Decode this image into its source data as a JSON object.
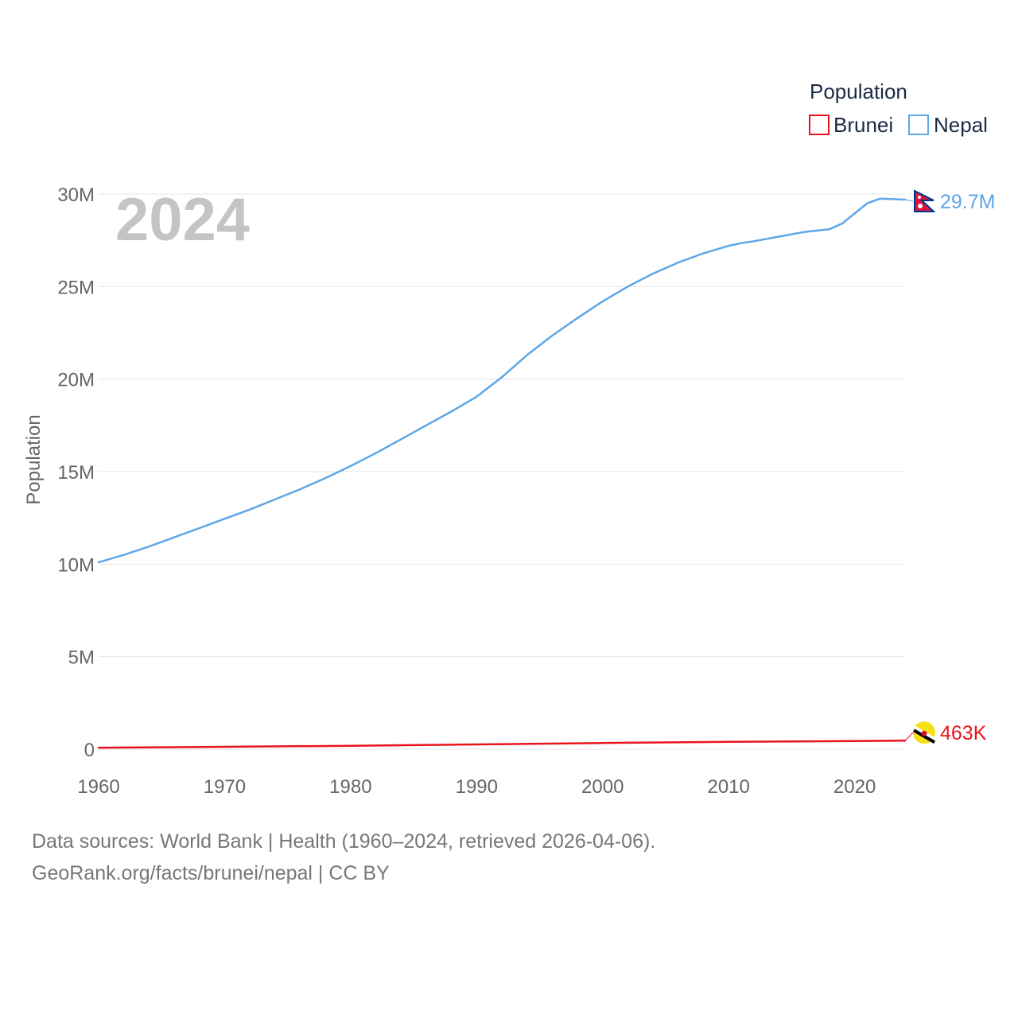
{
  "chart_data": {
    "type": "line",
    "year_label": "2024",
    "ylabel": "Population",
    "ylim": [
      0,
      30000000
    ],
    "xlim": [
      1960,
      2024
    ],
    "y_ticks": [
      {
        "value": 0,
        "label": "0"
      },
      {
        "value": 5000000,
        "label": "5M"
      },
      {
        "value": 10000000,
        "label": "10M"
      },
      {
        "value": 15000000,
        "label": "15M"
      },
      {
        "value": 20000000,
        "label": "20M"
      },
      {
        "value": 25000000,
        "label": "25M"
      },
      {
        "value": 30000000,
        "label": "30M"
      }
    ],
    "x_ticks": [
      {
        "value": 1960,
        "label": "1960"
      },
      {
        "value": 1970,
        "label": "1970"
      },
      {
        "value": 1980,
        "label": "1980"
      },
      {
        "value": 1990,
        "label": "1990"
      },
      {
        "value": 2000,
        "label": "2000"
      },
      {
        "value": 2010,
        "label": "2010"
      },
      {
        "value": 2020,
        "label": "2020"
      }
    ],
    "legend": {
      "title": "Population",
      "position": "top-right"
    },
    "series": [
      {
        "name": "Brunei",
        "color": "#e8141c",
        "end_label": "463K",
        "flag_icon": "brunei-flag-icon",
        "x": [
          1960,
          1970,
          1980,
          1990,
          2000,
          2010,
          2020,
          2024
        ],
        "values": [
          82000,
          130000,
          186000,
          258000,
          335000,
          396000,
          442000,
          463000
        ]
      },
      {
        "name": "Nepal",
        "color": "#5da6e8",
        "end_label": "29.7M",
        "flag_icon": "nepal-flag-icon",
        "x": [
          1960,
          1962,
          1964,
          1966,
          1968,
          1970,
          1972,
          1974,
          1976,
          1978,
          1980,
          1982,
          1984,
          1986,
          1988,
          1990,
          1992,
          1994,
          1996,
          1998,
          2000,
          2002,
          2004,
          2006,
          2008,
          2010,
          2011,
          2012,
          2014,
          2016,
          2018,
          2019,
          2020,
          2021,
          2022,
          2024
        ],
        "values": [
          10100000,
          10500000,
          10950000,
          11450000,
          11950000,
          12450000,
          12950000,
          13500000,
          14050000,
          14650000,
          15300000,
          16000000,
          16750000,
          17500000,
          18250000,
          19050000,
          20100000,
          21300000,
          22350000,
          23300000,
          24200000,
          25000000,
          25700000,
          26300000,
          26800000,
          27200000,
          27350000,
          27450000,
          27700000,
          27950000,
          28100000,
          28400000,
          28950000,
          29500000,
          29750000,
          29700000
        ]
      }
    ]
  },
  "footer": {
    "line1": "Data sources: World Bank | Health (1960–2024, retrieved 2026-04-06).",
    "line2": "GeoRank.org/facts/brunei/nepal | CC BY"
  }
}
